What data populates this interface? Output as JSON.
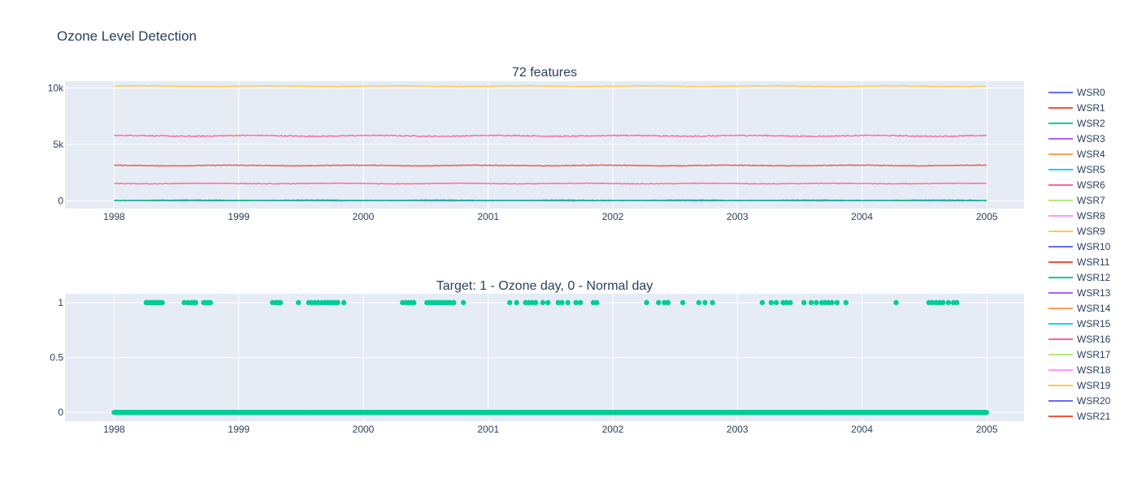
{
  "figure_title": "Ozone Level Detection",
  "chart_data": [
    {
      "type": "line",
      "title": "72 features",
      "xlabel": "",
      "ylabel": "",
      "x_ticks": [
        "1998",
        "1999",
        "2000",
        "2001",
        "2002",
        "2003",
        "2004",
        "2005"
      ],
      "y_ticks": [
        "0",
        "5k",
        "10k"
      ],
      "xlim": [
        "1997-08-10",
        "2005-04-20"
      ],
      "ylim": [
        -700,
        10600
      ],
      "grid": true,
      "series_levels": [
        {
          "level": 10150,
          "noise": 55,
          "color": "#FECB52"
        },
        {
          "level": 5750,
          "noise": 60,
          "color": "#FF6692"
        },
        {
          "level": 3120,
          "noise": 40,
          "color": "#EF553B"
        },
        {
          "level": 1520,
          "noise": 35,
          "color": "#FF6692"
        },
        {
          "level": 40,
          "noise": 25,
          "color": "#636EFA"
        },
        {
          "level": 15,
          "noise": 20,
          "color": "#AB63FA"
        },
        {
          "level": 5,
          "noise": 15,
          "color": "#EF553B"
        },
        {
          "level": 0,
          "noise": 8,
          "color": "#00CC96"
        }
      ]
    },
    {
      "type": "scatter",
      "title": "Target: 1 - Ozone day, 0 - Normal day",
      "xlabel": "",
      "ylabel": "",
      "x_ticks": [
        "1998",
        "1999",
        "2000",
        "2001",
        "2002",
        "2003",
        "2004",
        "2005"
      ],
      "y_ticks": [
        "0",
        "0.5",
        "1"
      ],
      "xlim": [
        "1997-08-10",
        "2005-04-20"
      ],
      "ylim": [
        -0.08,
        1.08
      ],
      "grid": true,
      "color": "#00CC96",
      "baseline": {
        "y": 0,
        "x_start": "1998-01-01",
        "x_end": "2004-12-31"
      },
      "ozone_days": [
        "1998-04-05",
        "1998-04-10",
        "1998-04-15",
        "1998-04-20",
        "1998-04-25",
        "1998-05-01",
        "1998-05-06",
        "1998-05-11",
        "1998-05-16",
        "1998-05-22",
        "1998-07-25",
        "1998-08-05",
        "1998-08-15",
        "1998-08-22",
        "1998-08-28",
        "1998-09-20",
        "1998-09-26",
        "1998-10-03",
        "1998-10-10",
        "1999-04-10",
        "1999-04-20",
        "1999-04-26",
        "1999-05-03",
        "1999-06-25",
        "1999-07-25",
        "1999-08-02",
        "1999-08-12",
        "1999-08-22",
        "1999-09-01",
        "1999-09-10",
        "1999-09-18",
        "1999-09-25",
        "1999-10-03",
        "1999-10-10",
        "1999-10-18",
        "1999-11-05",
        "2000-04-25",
        "2000-05-05",
        "2000-05-12",
        "2000-05-20",
        "2000-05-28",
        "2000-07-05",
        "2000-07-12",
        "2000-07-18",
        "2000-07-25",
        "2000-08-01",
        "2000-08-08",
        "2000-08-15",
        "2000-08-22",
        "2000-08-29",
        "2000-09-05",
        "2000-09-12",
        "2000-09-22",
        "2000-10-20",
        "2001-03-05",
        "2001-03-25",
        "2001-04-20",
        "2001-04-30",
        "2001-05-10",
        "2001-05-20",
        "2001-06-10",
        "2001-06-25",
        "2001-07-25",
        "2001-08-05",
        "2001-08-22",
        "2001-09-15",
        "2001-09-28",
        "2001-11-05",
        "2001-11-15",
        "2002-04-10",
        "2002-05-15",
        "2002-06-01",
        "2002-06-12",
        "2002-07-25",
        "2002-09-10",
        "2002-09-28",
        "2002-10-20",
        "2003-03-15",
        "2003-04-10",
        "2003-04-25",
        "2003-05-15",
        "2003-05-25",
        "2003-06-05",
        "2003-07-15",
        "2003-08-05",
        "2003-08-20",
        "2003-09-05",
        "2003-09-15",
        "2003-09-25",
        "2003-10-05",
        "2003-10-20",
        "2003-11-15",
        "2004-04-10",
        "2004-07-15",
        "2004-07-25",
        "2004-08-05",
        "2004-08-15",
        "2004-08-25",
        "2004-09-10",
        "2004-09-25",
        "2004-10-05"
      ]
    }
  ],
  "legend": {
    "placement": "right",
    "items": [
      {
        "name": "WSR0",
        "color": "#636EFA"
      },
      {
        "name": "WSR1",
        "color": "#EF553B"
      },
      {
        "name": "WSR2",
        "color": "#00CC96"
      },
      {
        "name": "WSR3",
        "color": "#AB63FA"
      },
      {
        "name": "WSR4",
        "color": "#FFA15A"
      },
      {
        "name": "WSR5",
        "color": "#19D3F3"
      },
      {
        "name": "WSR6",
        "color": "#FF6692"
      },
      {
        "name": "WSR7",
        "color": "#B6E880"
      },
      {
        "name": "WSR8",
        "color": "#FF97FF"
      },
      {
        "name": "WSR9",
        "color": "#FECB52"
      },
      {
        "name": "WSR10",
        "color": "#636EFA"
      },
      {
        "name": "WSR11",
        "color": "#EF553B"
      },
      {
        "name": "WSR12",
        "color": "#00CC96"
      },
      {
        "name": "WSR13",
        "color": "#AB63FA"
      },
      {
        "name": "WSR14",
        "color": "#FFA15A"
      },
      {
        "name": "WSR15",
        "color": "#19D3F3"
      },
      {
        "name": "WSR16",
        "color": "#FF6692"
      },
      {
        "name": "WSR17",
        "color": "#B6E880"
      },
      {
        "name": "WSR18",
        "color": "#FF97FF"
      },
      {
        "name": "WSR19",
        "color": "#FECB52"
      },
      {
        "name": "WSR20",
        "color": "#636EFA"
      },
      {
        "name": "WSR21",
        "color": "#EF553B"
      }
    ]
  },
  "colors": {
    "plot_bg": "#E5ECF6",
    "grid": "#FFFFFF",
    "text": "#2A3F5F"
  }
}
